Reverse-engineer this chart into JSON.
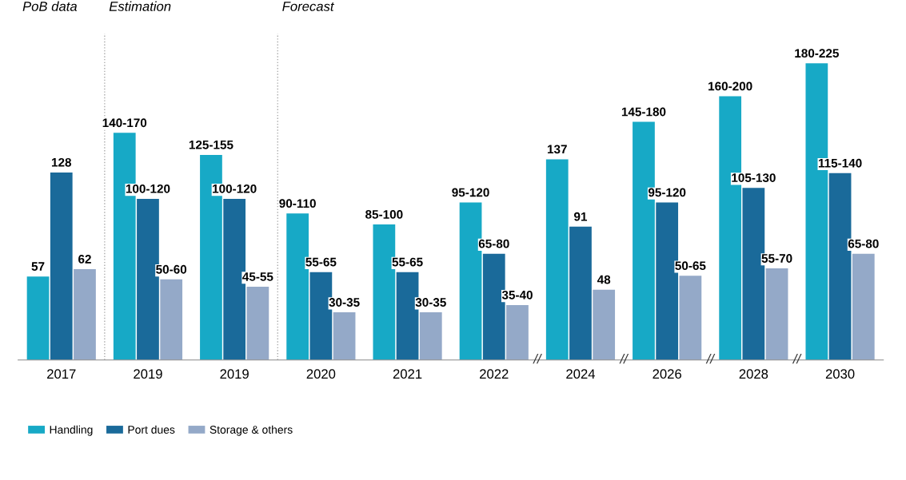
{
  "chart_data": {
    "type": "bar",
    "categories": [
      "2017",
      "2019",
      "2019",
      "2020",
      "2021",
      "2022",
      "2024",
      "2026",
      "2028",
      "2030"
    ],
    "series": [
      {
        "name": "Handling",
        "color": "#17a9c6",
        "values": [
          57,
          155,
          140,
          100,
          92.5,
          107.5,
          137,
          162.5,
          180,
          202.5
        ],
        "value_labels": [
          "57",
          "140-170",
          "125-155",
          "90-110",
          "85-100",
          "95-120",
          "137",
          "145-180",
          "160-200",
          "180-225"
        ]
      },
      {
        "name": "Port dues",
        "color": "#1a6a9a",
        "values": [
          128,
          110,
          110,
          60,
          60,
          72.5,
          91,
          107.5,
          117.5,
          127.5
        ],
        "value_labels": [
          "128",
          "100-120",
          "100-120",
          "55-65",
          "55-65",
          "65-80",
          "91",
          "95-120",
          "105-130",
          "115-140"
        ]
      },
      {
        "name": "Storage & others",
        "color": "#94a9c8",
        "values": [
          62,
          55,
          50,
          32.5,
          32.5,
          37.5,
          48,
          57.5,
          62.5,
          72.5
        ],
        "value_labels": [
          "62",
          "50-60",
          "45-55",
          "30-35",
          "30-35",
          "35-40",
          "48",
          "50-65",
          "55-70",
          "65-80"
        ]
      }
    ],
    "annotations": [
      "PoB data",
      "Estimation",
      "Forecast",
      {
        "text": "//",
        "x": "2024"
      },
      {
        "text": "//",
        "x": "2026"
      },
      {
        "text": "//",
        "x": "2028"
      },
      {
        "text": "//",
        "x": "2030"
      }
    ],
    "legend": "bottom left"
  }
}
